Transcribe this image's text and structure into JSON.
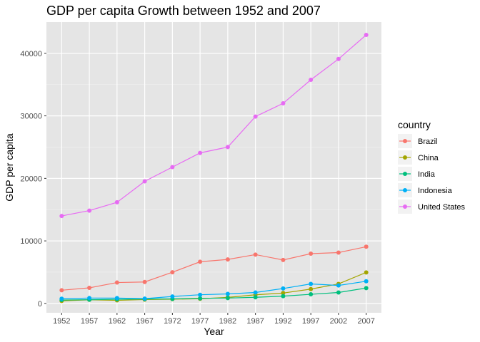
{
  "chart_data": {
    "type": "line",
    "title": "GDP per capita Growth between 1952 and 2007",
    "xlabel": "Year",
    "ylabel": "GDP per capita",
    "legend_title": "country",
    "legend_position": "right",
    "grid": true,
    "background": "#e5e5e5",
    "x": [
      1952,
      1957,
      1962,
      1967,
      1972,
      1977,
      1982,
      1987,
      1992,
      1997,
      2002,
      2007
    ],
    "xlim": [
      1949.25,
      2009.75
    ],
    "ylim": [
      -1500,
      45000
    ],
    "yticks": [
      0,
      10000,
      20000,
      30000,
      40000
    ],
    "ytick_labels": [
      "0",
      "10000",
      "20000",
      "30000",
      "40000"
    ],
    "xtick_labels": [
      "1952",
      "1957",
      "1962",
      "1967",
      "1972",
      "1977",
      "1982",
      "1987",
      "1992",
      "1997",
      "2002",
      "2007"
    ],
    "series": [
      {
        "name": "Brazil",
        "color": "#F8766D",
        "values": [
          2109,
          2487,
          3337,
          3430,
          4986,
          6660,
          7031,
          7807,
          6950,
          7958,
          8131,
          9066
        ]
      },
      {
        "name": "China",
        "color": "#A3A500",
        "values": [
          400,
          576,
          488,
          613,
          677,
          741,
          962,
          1379,
          1656,
          2289,
          3119,
          4959
        ]
      },
      {
        "name": "India",
        "color": "#00BF7D",
        "values": [
          547,
          590,
          658,
          701,
          724,
          813,
          856,
          977,
          1164,
          1459,
          1747,
          2452
        ]
      },
      {
        "name": "Indonesia",
        "color": "#00B0F6",
        "values": [
          750,
          858,
          849,
          762,
          1111,
          1383,
          1517,
          1748,
          2383,
          3119,
          2874,
          3541
        ]
      },
      {
        "name": "United States",
        "color": "#E76BF3",
        "values": [
          13990,
          14847,
          16173,
          19530,
          21806,
          24073,
          25010,
          29884,
          32004,
          35767,
          39097,
          42952
        ]
      }
    ]
  }
}
